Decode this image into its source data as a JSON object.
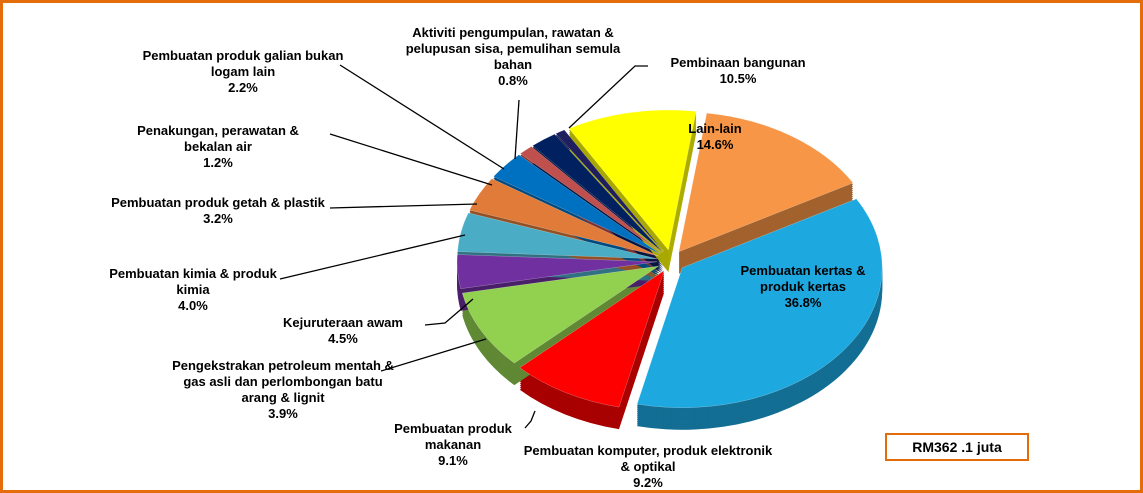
{
  "chart_data": {
    "type": "pie",
    "annotation": "RM362 .1 juta",
    "categories": [
      "Lain-lain",
      "Pembuatan kertas & produk kertas",
      "Pembuatan komputer, produk elektronik & optikal",
      "Pembuatan produk makanan",
      "Pengekstrakan petroleum mentah & gas  asli dan perlombongan batu arang & lignit",
      "Kejuruteraan awam",
      "Pembuatan kimia & produk kimia",
      "Pembuatan produk getah & plastik",
      "Penakungan, perawatan & bekalan air",
      "Pembuatan produk galian bukan logam lain",
      "Aktiviti pengumpulan, rawatan & pelupusan sisa, pemulihan semula bahan",
      "Pembinaan bangunan"
    ],
    "values": [
      14.6,
      36.8,
      9.2,
      9.1,
      3.9,
      4.5,
      4.0,
      3.2,
      1.2,
      2.2,
      0.8,
      10.5
    ],
    "value_labels": [
      "14.6%",
      "36.8%",
      "9.2%",
      "9.1%",
      "3.9%",
      "4.5%",
      "4.0%",
      "3.2%",
      "1.2%",
      "2.2%",
      "0.8%",
      "10.5%"
    ],
    "colors": [
      "#f79646",
      "#1ea8e0",
      "#ff0000",
      "#92d050",
      "#7030a0",
      "#4bacc6",
      "#e07b39",
      "#0070c0",
      "#c0504d",
      "#002060",
      "#1f1f5f",
      "#ffff00"
    ]
  }
}
